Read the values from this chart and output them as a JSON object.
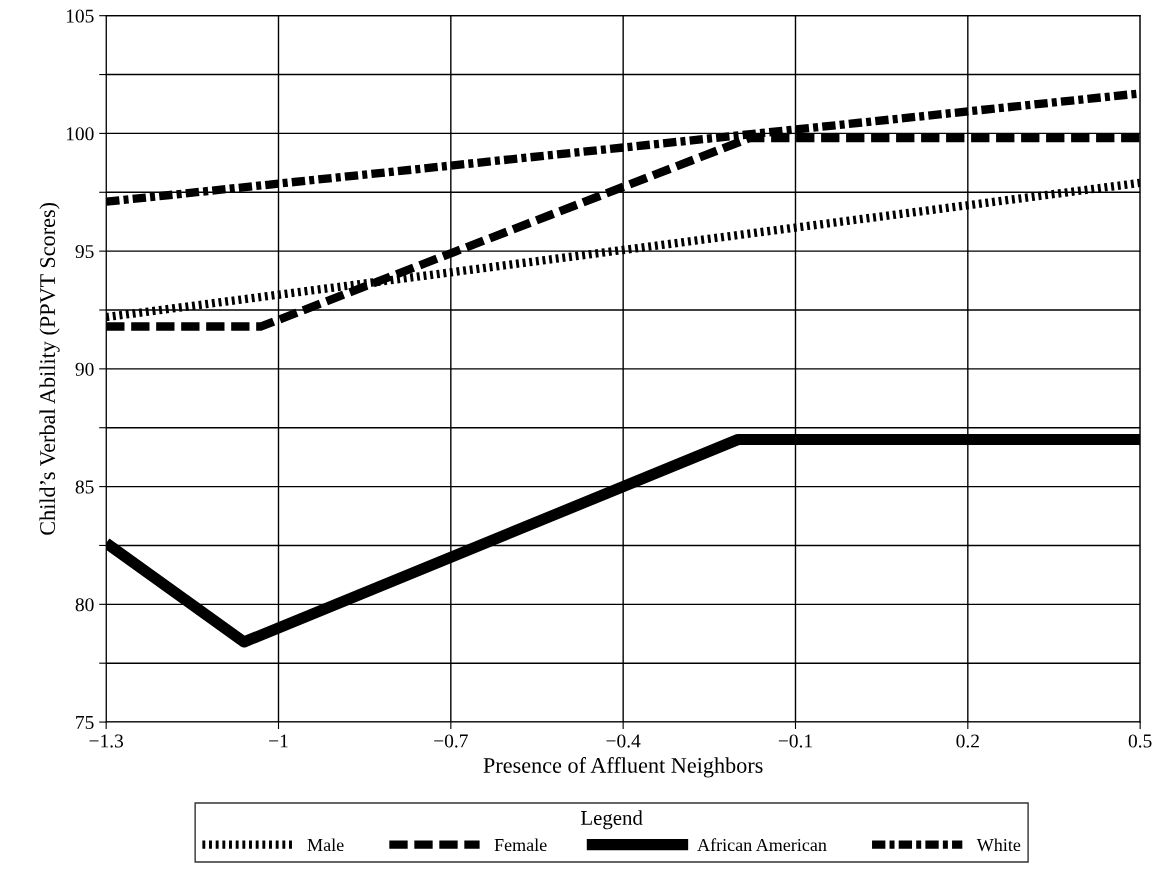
{
  "chart_data": {
    "type": "line",
    "xlabel": "Presence of Affluent Neighbors",
    "ylabel": "Child’s Verbal Ability (PPVT Scores)",
    "legend_title": "Legend",
    "legend": "bottom",
    "grid": true,
    "marker": "none",
    "xlim": [
      -1.3,
      0.5
    ],
    "xticks": [
      {
        "value": -1.3,
        "label": "−1.3"
      },
      {
        "value": -1,
        "label": "−1"
      },
      {
        "value": -0.7,
        "label": "−0.7"
      },
      {
        "value": -0.4,
        "label": "−0.4"
      },
      {
        "value": -0.1,
        "label": "−0.1"
      },
      0.2,
      0.5
    ],
    "ylim": [
      75,
      105
    ],
    "yticks": [
      75,
      {
        "value": 77.5,
        "label": null
      },
      80,
      {
        "value": 82.5,
        "label": null
      },
      85,
      {
        "value": 87.5,
        "label": null
      },
      90,
      {
        "value": 92.5,
        "label": null
      },
      95,
      {
        "value": 97.5,
        "label": null
      },
      100,
      {
        "value": 102.5,
        "label": null
      },
      105
    ],
    "series": [
      {
        "name": "Male",
        "color": "#000000",
        "line_style": "dotted",
        "x": [
          -1.3,
          0.5
        ],
        "values": [
          92.2,
          97.9
        ]
      },
      {
        "name": "Female",
        "color": "#000000",
        "line_style": "dashed",
        "x": [
          -1.3,
          -1.03,
          -0.18,
          0.5
        ],
        "values": [
          91.8,
          91.8,
          99.8,
          99.8
        ]
      },
      {
        "name": "African American",
        "color": "#000000",
        "line_style": "solid",
        "x": [
          -1.3,
          -1.06,
          -0.2,
          0.5
        ],
        "values": [
          82.6,
          78.4,
          87.0,
          87.0
        ]
      },
      {
        "name": "White",
        "color": "#000000",
        "line_style": "dashdot",
        "x": [
          -1.3,
          0.5
        ],
        "values": [
          97.1,
          101.7
        ]
      }
    ]
  }
}
